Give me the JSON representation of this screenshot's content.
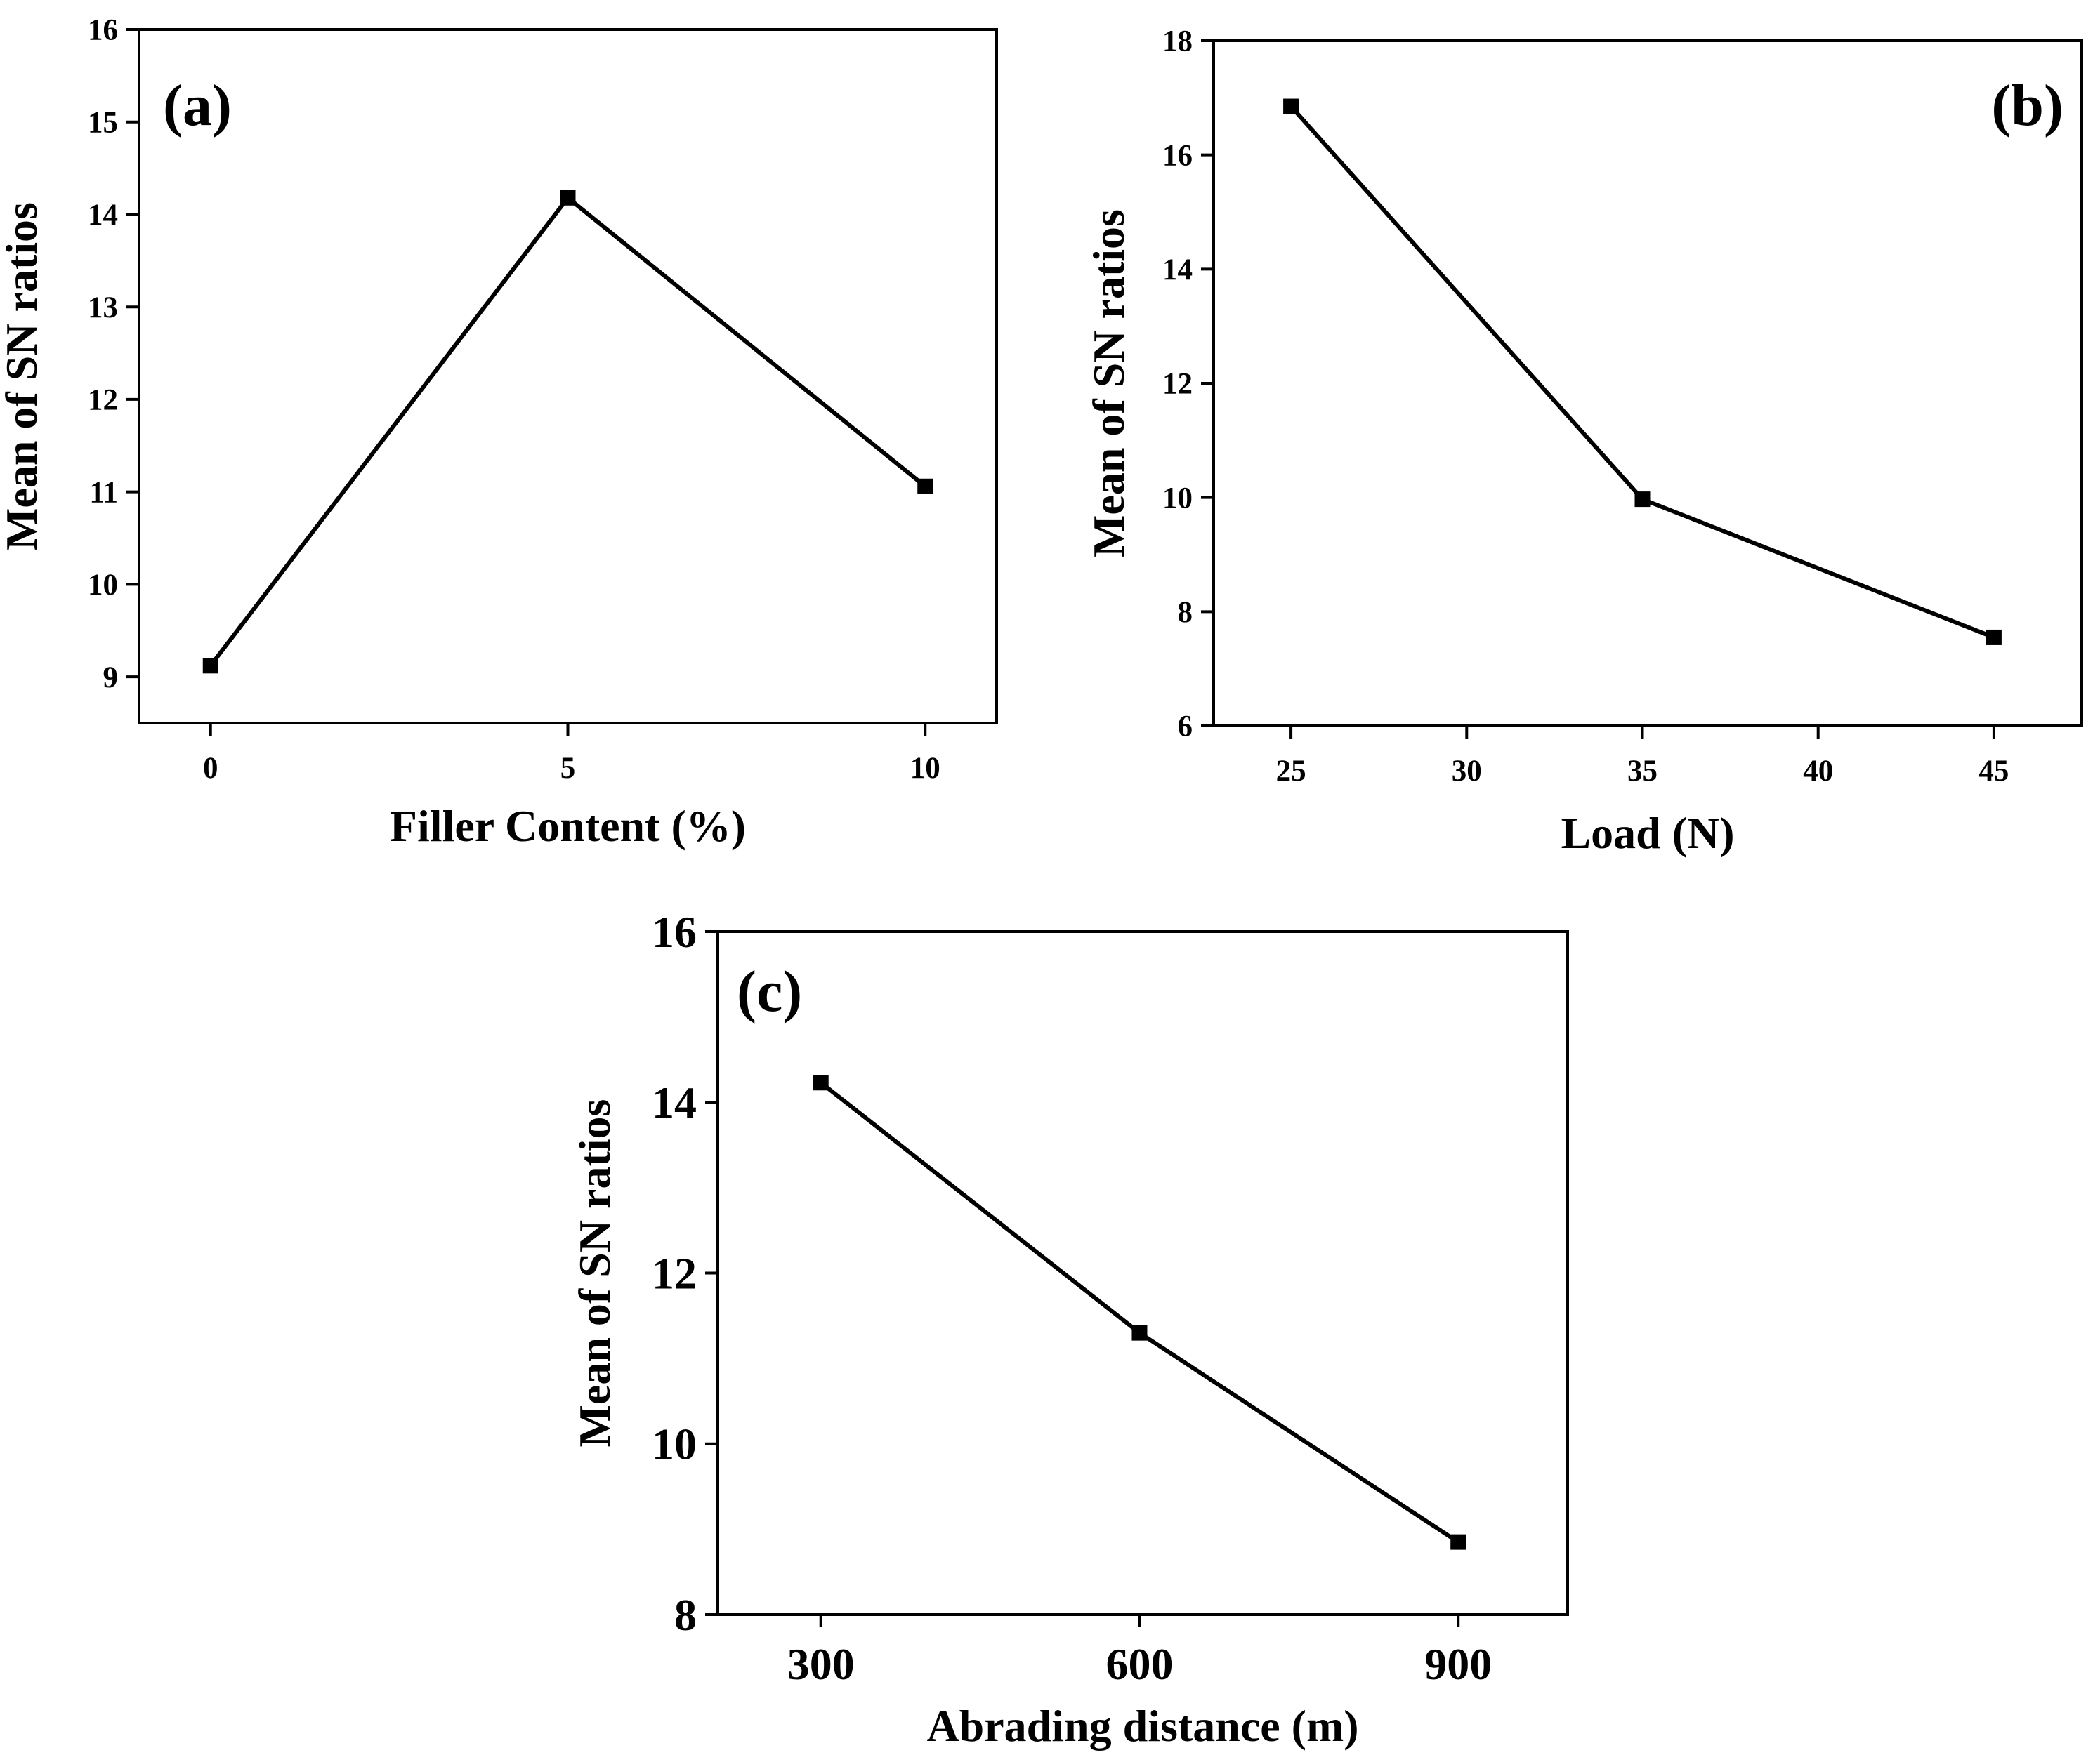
{
  "chart_data": [
    {
      "type": "line",
      "panel_label": "(a)",
      "xlabel": "Filler Content (%)",
      "ylabel": "Mean of SN ratios",
      "x": [
        0,
        5,
        10
      ],
      "series": [
        {
          "values": [
            9.12,
            14.18,
            11.06
          ]
        }
      ],
      "xlim": [
        -1,
        11
      ],
      "ylim": [
        8.5,
        16
      ],
      "xticks": [
        0,
        5,
        10
      ],
      "yticks": [
        9,
        10,
        11,
        12,
        13,
        14,
        15,
        16
      ],
      "grid": false,
      "legend": false,
      "line_color": "#000000",
      "marker": "square"
    },
    {
      "type": "line",
      "panel_label": "(b)",
      "xlabel": "Load (N)",
      "ylabel": "Mean of SN ratios",
      "x": [
        25,
        35,
        45
      ],
      "series": [
        {
          "values": [
            16.85,
            9.97,
            7.55
          ]
        }
      ],
      "xlim": [
        22.8,
        47.5
      ],
      "ylim": [
        6,
        18
      ],
      "xticks": [
        25,
        30,
        35,
        40,
        45
      ],
      "yticks": [
        6,
        8,
        10,
        12,
        14,
        16,
        18
      ],
      "grid": false,
      "legend": false,
      "line_color": "#000000",
      "marker": "square"
    },
    {
      "type": "line",
      "panel_label": "(c)",
      "xlabel": "Abrading distance (m)",
      "ylabel": "Mean of SN ratios",
      "x": [
        300,
        600,
        900
      ],
      "series": [
        {
          "values": [
            14.23,
            11.3,
            8.85
          ]
        }
      ],
      "xlim": [
        203,
        1003
      ],
      "ylim": [
        8,
        16
      ],
      "xticks": [
        300,
        600,
        900
      ],
      "yticks": [
        8,
        10,
        12,
        14,
        16
      ],
      "grid": false,
      "legend": false,
      "line_color": "#000000",
      "marker": "square"
    }
  ]
}
